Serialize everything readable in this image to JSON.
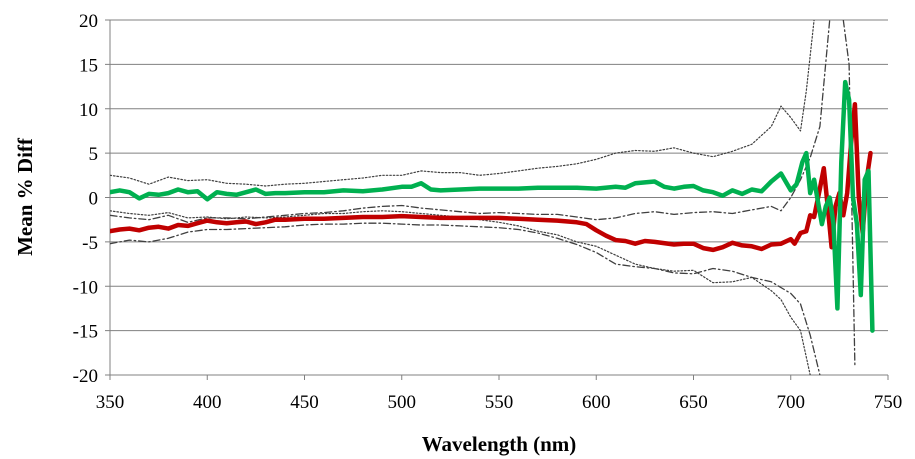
{
  "chart_data": {
    "type": "line",
    "xlabel": "Wavelength (nm)",
    "ylabel": "Mean % Diff",
    "xlim": [
      350,
      750
    ],
    "ylim": [
      -20,
      20
    ],
    "xticks": [
      350,
      400,
      450,
      500,
      550,
      600,
      650,
      700,
      750
    ],
    "yticks": [
      20,
      15,
      10,
      5,
      0,
      -5,
      -10,
      -15,
      -20
    ],
    "xtick_labels": [
      "350",
      "400",
      "450",
      "500",
      "550",
      "600",
      "650",
      "700",
      "750"
    ],
    "ytick_labels": [
      "20",
      "15",
      "10",
      "5",
      "0",
      "-5",
      "-10",
      "-15",
      "-20"
    ],
    "grid": "horizontal",
    "legend": "none",
    "series": [
      {
        "color": "#c00000",
        "style": "solid-thick",
        "points": [
          [
            350,
            -3.8
          ],
          [
            355,
            -3.6
          ],
          [
            360,
            -3.5
          ],
          [
            365,
            -3.7
          ],
          [
            370,
            -3.4
          ],
          [
            375,
            -3.3
          ],
          [
            380,
            -3.5
          ],
          [
            385,
            -3.1
          ],
          [
            390,
            -3.2
          ],
          [
            395,
            -2.9
          ],
          [
            400,
            -2.6
          ],
          [
            405,
            -2.8
          ],
          [
            410,
            -2.9
          ],
          [
            415,
            -2.8
          ],
          [
            420,
            -2.7
          ],
          [
            425,
            -3.0
          ],
          [
            430,
            -2.8
          ],
          [
            435,
            -2.5
          ],
          [
            440,
            -2.5
          ],
          [
            450,
            -2.4
          ],
          [
            460,
            -2.4
          ],
          [
            470,
            -2.3
          ],
          [
            480,
            -2.2
          ],
          [
            490,
            -2.2
          ],
          [
            500,
            -2.1
          ],
          [
            510,
            -2.2
          ],
          [
            520,
            -2.3
          ],
          [
            530,
            -2.3
          ],
          [
            540,
            -2.3
          ],
          [
            550,
            -2.3
          ],
          [
            560,
            -2.4
          ],
          [
            570,
            -2.5
          ],
          [
            580,
            -2.6
          ],
          [
            590,
            -2.8
          ],
          [
            595,
            -3.0
          ],
          [
            600,
            -3.7
          ],
          [
            605,
            -4.3
          ],
          [
            610,
            -4.8
          ],
          [
            615,
            -4.9
          ],
          [
            620,
            -5.2
          ],
          [
            625,
            -4.9
          ],
          [
            630,
            -5.0
          ],
          [
            640,
            -5.3
          ],
          [
            645,
            -5.2
          ],
          [
            650,
            -5.2
          ],
          [
            655,
            -5.7
          ],
          [
            660,
            -5.9
          ],
          [
            665,
            -5.6
          ],
          [
            670,
            -5.1
          ],
          [
            675,
            -5.4
          ],
          [
            680,
            -5.5
          ],
          [
            685,
            -5.8
          ],
          [
            690,
            -5.3
          ],
          [
            695,
            -5.2
          ],
          [
            700,
            -4.7
          ],
          [
            702,
            -5.2
          ],
          [
            705,
            -4.0
          ],
          [
            708,
            -3.8
          ],
          [
            710,
            -2.0
          ],
          [
            712,
            -2.2
          ],
          [
            715,
            1.0
          ],
          [
            717,
            3.3
          ],
          [
            719,
            -1.0
          ],
          [
            721,
            -5.6
          ],
          [
            723,
            -1.0
          ],
          [
            725,
            0.5
          ],
          [
            727,
            -2.0
          ],
          [
            729,
            0.5
          ],
          [
            731,
            6.0
          ],
          [
            733,
            10.5
          ],
          [
            735,
            0.0
          ],
          [
            737,
            -4.0
          ],
          [
            739,
            2.0
          ],
          [
            741,
            5.0
          ]
        ]
      },
      {
        "color": "#00b050",
        "style": "solid-thick",
        "points": [
          [
            350,
            0.6
          ],
          [
            355,
            0.8
          ],
          [
            360,
            0.6
          ],
          [
            365,
            -0.1
          ],
          [
            370,
            0.4
          ],
          [
            375,
            0.3
          ],
          [
            380,
            0.5
          ],
          [
            385,
            0.9
          ],
          [
            390,
            0.6
          ],
          [
            395,
            0.7
          ],
          [
            400,
            -0.2
          ],
          [
            405,
            0.6
          ],
          [
            410,
            0.4
          ],
          [
            415,
            0.3
          ],
          [
            420,
            0.6
          ],
          [
            425,
            0.9
          ],
          [
            430,
            0.4
          ],
          [
            435,
            0.5
          ],
          [
            440,
            0.5
          ],
          [
            450,
            0.6
          ],
          [
            460,
            0.6
          ],
          [
            470,
            0.8
          ],
          [
            480,
            0.7
          ],
          [
            490,
            0.9
          ],
          [
            500,
            1.2
          ],
          [
            505,
            1.2
          ],
          [
            510,
            1.6
          ],
          [
            515,
            0.9
          ],
          [
            520,
            0.8
          ],
          [
            530,
            0.9
          ],
          [
            540,
            1.0
          ],
          [
            550,
            1.0
          ],
          [
            560,
            1.0
          ],
          [
            570,
            1.1
          ],
          [
            580,
            1.1
          ],
          [
            590,
            1.1
          ],
          [
            600,
            1.0
          ],
          [
            610,
            1.2
          ],
          [
            615,
            1.1
          ],
          [
            620,
            1.6
          ],
          [
            625,
            1.7
          ],
          [
            630,
            1.8
          ],
          [
            635,
            1.2
          ],
          [
            640,
            1.0
          ],
          [
            645,
            1.2
          ],
          [
            650,
            1.3
          ],
          [
            655,
            0.8
          ],
          [
            660,
            0.6
          ],
          [
            665,
            0.2
          ],
          [
            670,
            0.8
          ],
          [
            675,
            0.4
          ],
          [
            680,
            0.9
          ],
          [
            685,
            0.7
          ],
          [
            690,
            1.8
          ],
          [
            695,
            2.7
          ],
          [
            700,
            0.8
          ],
          [
            703,
            1.5
          ],
          [
            706,
            4.0
          ],
          [
            708,
            5.0
          ],
          [
            710,
            0.5
          ],
          [
            712,
            2.0
          ],
          [
            714,
            -0.5
          ],
          [
            716,
            -3.0
          ],
          [
            718,
            -1.0
          ],
          [
            720,
            0.0
          ],
          [
            722,
            -3.0
          ],
          [
            724,
            -12.5
          ],
          [
            726,
            4.0
          ],
          [
            728,
            13.0
          ],
          [
            730,
            11.0
          ],
          [
            732,
            0.0
          ],
          [
            734,
            -3.0
          ],
          [
            736,
            -11.0
          ],
          [
            738,
            2.0
          ],
          [
            740,
            3.0
          ],
          [
            742,
            -15.0
          ]
        ]
      },
      {
        "color": "#404040",
        "style": "dotted",
        "points": [
          [
            350,
            2.5
          ],
          [
            360,
            2.2
          ],
          [
            370,
            1.5
          ],
          [
            380,
            2.3
          ],
          [
            390,
            1.9
          ],
          [
            400,
            2.0
          ],
          [
            410,
            1.6
          ],
          [
            420,
            1.5
          ],
          [
            430,
            1.3
          ],
          [
            440,
            1.5
          ],
          [
            450,
            1.6
          ],
          [
            460,
            1.8
          ],
          [
            470,
            2.0
          ],
          [
            480,
            2.2
          ],
          [
            490,
            2.5
          ],
          [
            500,
            2.5
          ],
          [
            510,
            3.0
          ],
          [
            520,
            2.8
          ],
          [
            530,
            2.8
          ],
          [
            540,
            2.5
          ],
          [
            550,
            2.7
          ],
          [
            560,
            3.0
          ],
          [
            570,
            3.3
          ],
          [
            580,
            3.5
          ],
          [
            590,
            3.8
          ],
          [
            600,
            4.3
          ],
          [
            610,
            5.0
          ],
          [
            620,
            5.3
          ],
          [
            630,
            5.2
          ],
          [
            640,
            5.6
          ],
          [
            650,
            5.0
          ],
          [
            660,
            4.6
          ],
          [
            670,
            5.2
          ],
          [
            680,
            6.0
          ],
          [
            690,
            8.0
          ],
          [
            695,
            10.3
          ],
          [
            700,
            9.0
          ],
          [
            705,
            7.5
          ],
          [
            708,
            12.0
          ],
          [
            712,
            20.0
          ]
        ]
      },
      {
        "color": "#404040",
        "style": "dotted",
        "points": [
          [
            350,
            -1.5
          ],
          [
            360,
            -1.8
          ],
          [
            370,
            -2.0
          ],
          [
            380,
            -1.7
          ],
          [
            390,
            -2.3
          ],
          [
            400,
            -2.2
          ],
          [
            410,
            -2.4
          ],
          [
            420,
            -2.2
          ],
          [
            430,
            -2.3
          ],
          [
            440,
            -2.2
          ],
          [
            450,
            -2.0
          ],
          [
            460,
            -1.8
          ],
          [
            470,
            -1.8
          ],
          [
            480,
            -1.6
          ],
          [
            490,
            -1.5
          ],
          [
            500,
            -1.6
          ],
          [
            510,
            -1.8
          ],
          [
            520,
            -2.0
          ],
          [
            530,
            -2.2
          ],
          [
            540,
            -2.5
          ],
          [
            550,
            -2.8
          ],
          [
            560,
            -3.2
          ],
          [
            570,
            -3.8
          ],
          [
            580,
            -4.2
          ],
          [
            590,
            -5.0
          ],
          [
            600,
            -5.5
          ],
          [
            610,
            -6.5
          ],
          [
            620,
            -7.5
          ],
          [
            630,
            -8.0
          ],
          [
            640,
            -8.3
          ],
          [
            650,
            -8.2
          ],
          [
            660,
            -9.6
          ],
          [
            670,
            -9.5
          ],
          [
            680,
            -9.0
          ],
          [
            690,
            -10.5
          ],
          [
            695,
            -11.5
          ],
          [
            700,
            -13.5
          ],
          [
            705,
            -15.0
          ],
          [
            710,
            -20.0
          ]
        ]
      },
      {
        "color": "#404040",
        "style": "dashdot",
        "points": [
          [
            350,
            -2.0
          ],
          [
            360,
            -2.3
          ],
          [
            370,
            -2.5
          ],
          [
            380,
            -2.0
          ],
          [
            390,
            -2.8
          ],
          [
            400,
            -2.3
          ],
          [
            410,
            -2.3
          ],
          [
            420,
            -2.4
          ],
          [
            430,
            -2.2
          ],
          [
            440,
            -2.0
          ],
          [
            450,
            -1.8
          ],
          [
            460,
            -1.7
          ],
          [
            470,
            -1.5
          ],
          [
            480,
            -1.2
          ],
          [
            490,
            -1.0
          ],
          [
            500,
            -0.9
          ],
          [
            510,
            -1.2
          ],
          [
            520,
            -1.4
          ],
          [
            530,
            -1.6
          ],
          [
            540,
            -1.8
          ],
          [
            550,
            -1.7
          ],
          [
            560,
            -1.8
          ],
          [
            570,
            -1.9
          ],
          [
            580,
            -1.9
          ],
          [
            590,
            -2.2
          ],
          [
            600,
            -2.5
          ],
          [
            610,
            -2.3
          ],
          [
            620,
            -1.8
          ],
          [
            630,
            -1.6
          ],
          [
            640,
            -1.9
          ],
          [
            650,
            -1.7
          ],
          [
            660,
            -1.6
          ],
          [
            670,
            -1.8
          ],
          [
            680,
            -1.4
          ],
          [
            690,
            -1.0
          ],
          [
            695,
            -1.5
          ],
          [
            700,
            0.0
          ],
          [
            705,
            2.0
          ],
          [
            710,
            4.5
          ],
          [
            715,
            8.0
          ],
          [
            720,
            20.0
          ]
        ]
      },
      {
        "color": "#404040",
        "style": "dashdot",
        "points": [
          [
            350,
            -5.2
          ],
          [
            360,
            -4.8
          ],
          [
            370,
            -5.0
          ],
          [
            380,
            -4.6
          ],
          [
            390,
            -3.9
          ],
          [
            400,
            -3.6
          ],
          [
            410,
            -3.6
          ],
          [
            420,
            -3.5
          ],
          [
            430,
            -3.4
          ],
          [
            440,
            -3.3
          ],
          [
            450,
            -3.1
          ],
          [
            460,
            -3.0
          ],
          [
            470,
            -3.0
          ],
          [
            480,
            -2.9
          ],
          [
            490,
            -2.9
          ],
          [
            500,
            -3.0
          ],
          [
            510,
            -3.1
          ],
          [
            520,
            -3.1
          ],
          [
            530,
            -3.2
          ],
          [
            540,
            -3.3
          ],
          [
            550,
            -3.4
          ],
          [
            560,
            -3.6
          ],
          [
            570,
            -4.0
          ],
          [
            580,
            -4.6
          ],
          [
            590,
            -5.3
          ],
          [
            600,
            -6.2
          ],
          [
            610,
            -7.5
          ],
          [
            620,
            -7.8
          ],
          [
            630,
            -8.0
          ],
          [
            640,
            -8.5
          ],
          [
            650,
            -8.6
          ],
          [
            660,
            -8.0
          ],
          [
            670,
            -8.3
          ],
          [
            680,
            -9.0
          ],
          [
            690,
            -9.5
          ],
          [
            700,
            -10.8
          ],
          [
            705,
            -12.0
          ],
          [
            710,
            -15.5
          ],
          [
            715,
            -20.0
          ]
        ]
      },
      {
        "color": "#404040",
        "style": "dashdot",
        "points": [
          [
            727,
            20.0
          ],
          [
            730,
            15.0
          ],
          [
            733,
            -19.0
          ]
        ]
      }
    ]
  }
}
